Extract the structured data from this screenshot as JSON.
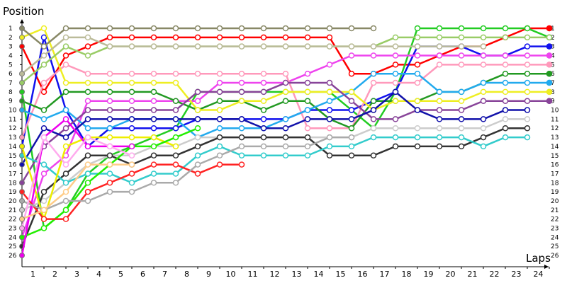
{
  "chart_data": {
    "type": "line",
    "xlabel": "Laps",
    "ylabel": "Position",
    "x_ticks": [
      "1",
      "2",
      "3",
      "4",
      "5",
      "6",
      "7",
      "8",
      "9",
      "10",
      "11",
      "12",
      "13",
      "14",
      "15",
      "16",
      "17",
      "18",
      "19",
      "20",
      "21",
      "22",
      "23",
      "24"
    ],
    "y_ticks": [
      "1",
      "2",
      "3",
      "4",
      "5",
      "6",
      "7",
      "8",
      "9",
      "10",
      "11",
      "12",
      "13",
      "14",
      "15",
      "16",
      "17",
      "18",
      "19",
      "20",
      "21",
      "22",
      "23",
      "24",
      "25",
      "26"
    ],
    "xlim": [
      0,
      24
    ],
    "ylim": [
      1,
      26
    ],
    "y_inverted": true,
    "y_labels_both_sides": true,
    "grid": false,
    "series": [
      {
        "color": "#ff0000",
        "start": 0,
        "positions": [
          3,
          8,
          4,
          3,
          2,
          2,
          2,
          2,
          2,
          2,
          2,
          2,
          2,
          2,
          2,
          6,
          6,
          5,
          5,
          4,
          3,
          3,
          2,
          1,
          1
        ],
        "end_label": "1"
      },
      {
        "color": "#22cc22",
        "start": 0,
        "positions": [
          8,
          23,
          21,
          17,
          15,
          14,
          13,
          12,
          8,
          8,
          8,
          8,
          8,
          8,
          8,
          10,
          12,
          8,
          1,
          1,
          1,
          1,
          1,
          1,
          2
        ],
        "end_label": "2"
      },
      {
        "color": "#1111ee",
        "start": 0,
        "positions": [
          14,
          2,
          10,
          14,
          12,
          12,
          12,
          12,
          11,
          11,
          11,
          11,
          11,
          10,
          10,
          10,
          9,
          8,
          3,
          3,
          3,
          4,
          4,
          3,
          3
        ],
        "end_label": "3"
      },
      {
        "color": "#ee44ee",
        "start": 0,
        "positions": [
          24,
          17,
          15,
          9,
          9,
          9,
          9,
          9,
          9,
          7,
          7,
          7,
          7,
          6,
          5,
          4,
          4,
          4,
          4,
          4,
          4,
          4,
          4,
          4,
          4
        ],
        "end_label": "4"
      },
      {
        "color": "#ff99bb",
        "start": 0,
        "positions": [
          13,
          7,
          5,
          6,
          6,
          6,
          6,
          6,
          6,
          6,
          6,
          6,
          6,
          12,
          12,
          12,
          7,
          7,
          7,
          5,
          5,
          5,
          5,
          5,
          5
        ],
        "end_label": "5"
      },
      {
        "color": "#229922",
        "start": 0,
        "positions": [
          9,
          10,
          8,
          8,
          8,
          8,
          8,
          9,
          10,
          9,
          9,
          10,
          9,
          9,
          11,
          12,
          9,
          9,
          9,
          8,
          8,
          7,
          6,
          6,
          6
        ],
        "end_label": "6"
      },
      {
        "color": "#22aaee",
        "start": 0,
        "positions": [
          10,
          11,
          10,
          12,
          12,
          11,
          11,
          11,
          13,
          12,
          12,
          12,
          11,
          10,
          9,
          8,
          6,
          6,
          6,
          8,
          8,
          7,
          7,
          7,
          7
        ],
        "end_label": "7"
      },
      {
        "color": "#eeee22",
        "start": 0,
        "positions": [
          2,
          1,
          7,
          7,
          7,
          7,
          7,
          7,
          10,
          10,
          9,
          9,
          8,
          8,
          8,
          8,
          10,
          9,
          9,
          9,
          9,
          8,
          8,
          8,
          8
        ],
        "end_label": "8"
      },
      {
        "color": "#884499",
        "start": 0,
        "positions": [
          18,
          14,
          12,
          10,
          10,
          10,
          10,
          10,
          8,
          8,
          8,
          8,
          7,
          7,
          7,
          9,
          11,
          11,
          10,
          10,
          10,
          9,
          9,
          9,
          9
        ],
        "end_label": "9"
      },
      {
        "color": "#99cc66",
        "start": 0,
        "positions": [
          7,
          5,
          3,
          4,
          3,
          3,
          3,
          3,
          3,
          3,
          3,
          3,
          3,
          3,
          3,
          3,
          3,
          2,
          2,
          2,
          2,
          2,
          2,
          2,
          2
        ]
      },
      {
        "color": "#888866",
        "start": 0,
        "positions": [
          1,
          3,
          1,
          1,
          1,
          1,
          1,
          1,
          1,
          1,
          1,
          1,
          1,
          1,
          1,
          1,
          1
        ]
      },
      {
        "color": "#bbbb99",
        "start": 0,
        "positions": [
          6,
          4,
          2,
          2,
          3,
          3,
          3,
          3,
          3,
          3,
          3,
          3,
          3,
          3,
          3,
          3,
          3,
          3,
          3,
          3,
          3,
          3
        ]
      },
      {
        "color": "#1111aa",
        "start": 0,
        "positions": [
          16,
          12,
          13,
          11,
          11,
          11,
          11,
          11,
          11,
          11,
          11,
          12,
          12,
          11,
          11,
          11,
          10,
          8,
          10,
          11,
          11,
          11,
          10,
          10
        ],
        "end_label": "10"
      },
      {
        "color": "#cccccc",
        "start": 0,
        "positions": [
          21,
          20,
          18,
          16,
          15,
          15,
          14,
          14,
          13,
          13,
          13,
          13,
          13,
          13,
          13,
          13,
          12,
          12,
          12,
          12,
          12,
          12,
          11,
          11
        ],
        "end_label": "11"
      },
      {
        "color": "#333333",
        "start": 0,
        "positions": [
          25,
          19,
          17,
          15,
          15,
          16,
          15,
          15,
          14,
          13,
          13,
          13,
          13,
          13,
          15,
          15,
          15,
          14,
          14,
          14,
          14,
          13,
          12,
          12
        ],
        "end_label": "12"
      },
      {
        "color": "#33cccc",
        "start": 0,
        "positions": [
          15,
          16,
          18,
          17,
          17,
          18,
          17,
          17,
          15,
          14,
          15,
          15,
          15,
          15,
          14,
          14,
          13,
          13,
          13,
          13,
          13,
          14,
          13,
          13
        ],
        "end_label": "13"
      },
      {
        "color": "#eeee00",
        "start": 0,
        "positions": [
          14,
          22,
          14,
          13,
          13,
          13,
          13,
          14
        ]
      },
      {
        "color": "#22ee00",
        "start": 0,
        "positions": [
          24,
          23,
          21,
          18,
          16,
          14,
          14,
          13,
          12
        ]
      },
      {
        "color": "#ee00ee",
        "start": 0,
        "positions": [
          26,
          13,
          11,
          14,
          14,
          14
        ]
      },
      {
        "color": "#ff2222",
        "start": 0,
        "positions": [
          19,
          22,
          22,
          19,
          18,
          17,
          16,
          16,
          17,
          16,
          16
        ]
      },
      {
        "color": "#aaaaaa",
        "start": 0,
        "positions": [
          20,
          21,
          20,
          20,
          19,
          19,
          18,
          18,
          16,
          15,
          14,
          14,
          14,
          14,
          13,
          13
        ]
      },
      {
        "color": "#ffaaee",
        "start": 0,
        "positions": [
          23,
          13,
          16,
          13,
          14,
          15
        ]
      },
      {
        "color": "#ffcc88",
        "start": 0,
        "positions": [
          22,
          21,
          19,
          16,
          16,
          16
        ]
      }
    ]
  }
}
